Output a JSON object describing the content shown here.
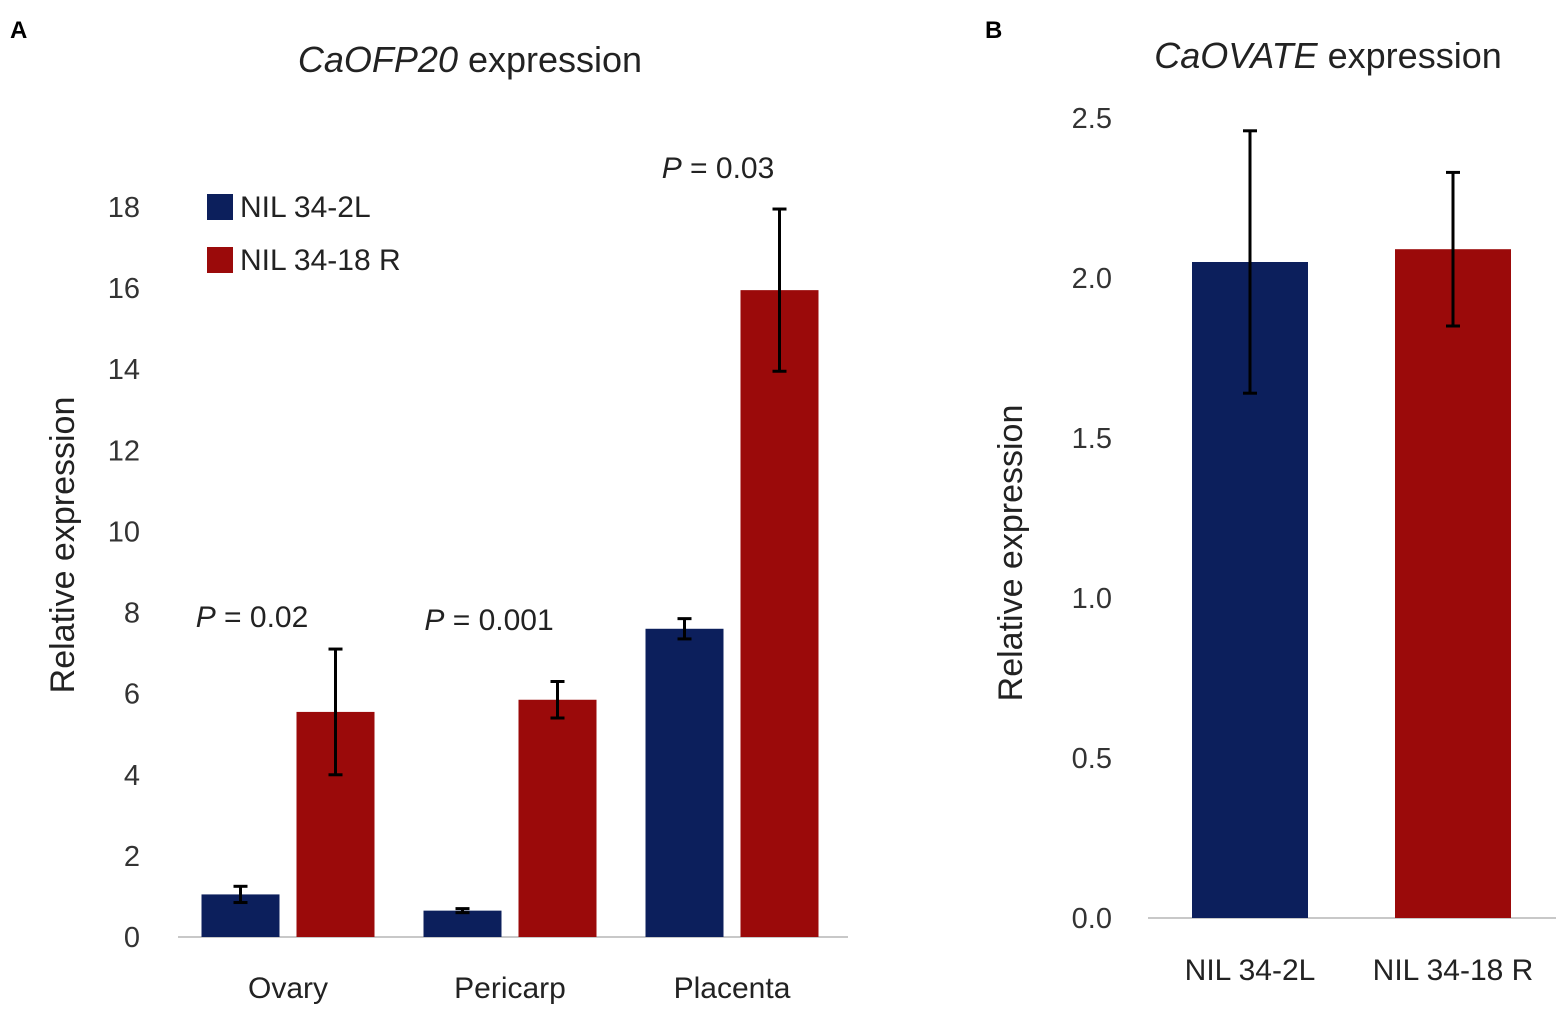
{
  "colors": {
    "series1": "#0c1f5c",
    "series2": "#9b0a0a"
  },
  "chart_data": [
    {
      "panel": "A",
      "type": "bar",
      "title_italic": "CaOFP20",
      "title_rest": " expression",
      "ylabel": "Relative expression",
      "xlabel": "",
      "ylim": [
        0,
        18
      ],
      "yticks": [
        "0",
        "2",
        "4",
        "6",
        "8",
        "10",
        "12",
        "14",
        "16",
        "18"
      ],
      "categories": [
        "Ovary",
        "Pericarp",
        "Placenta"
      ],
      "series": [
        {
          "name": "NIL 34-2L",
          "values": [
            1.05,
            0.65,
            7.6
          ],
          "errors": [
            0.2,
            0.05,
            0.25
          ]
        },
        {
          "name": "NIL 34-18 R",
          "values": [
            5.55,
            5.85,
            15.95
          ],
          "errors": [
            1.55,
            0.45,
            2.0
          ]
        }
      ],
      "annotations": [
        {
          "category": "Ovary",
          "p_label": "P",
          "p_value": " = 0.02"
        },
        {
          "category": "Pericarp",
          "p_label": "P",
          "p_value": " = 0.001"
        },
        {
          "category": "Placenta",
          "p_label": "P",
          "p_value": " = 0.03"
        }
      ],
      "legend": {
        "placement": "top-left",
        "entries": [
          "NIL 34-2L",
          "NIL 34-18 R"
        ]
      }
    },
    {
      "panel": "B",
      "type": "bar",
      "title_italic": "CaOVATE",
      "title_rest": " expression",
      "ylabel": "Relative expression",
      "xlabel": "",
      "ylim": [
        0,
        2.5
      ],
      "yticks": [
        "0.0",
        "0.5",
        "1.0",
        "1.5",
        "2.0",
        "2.5"
      ],
      "categories": [
        "NIL 34-2L",
        "NIL 34-18 R"
      ],
      "values": [
        2.05,
        2.09
      ],
      "errors": [
        0.41,
        0.24
      ]
    }
  ]
}
